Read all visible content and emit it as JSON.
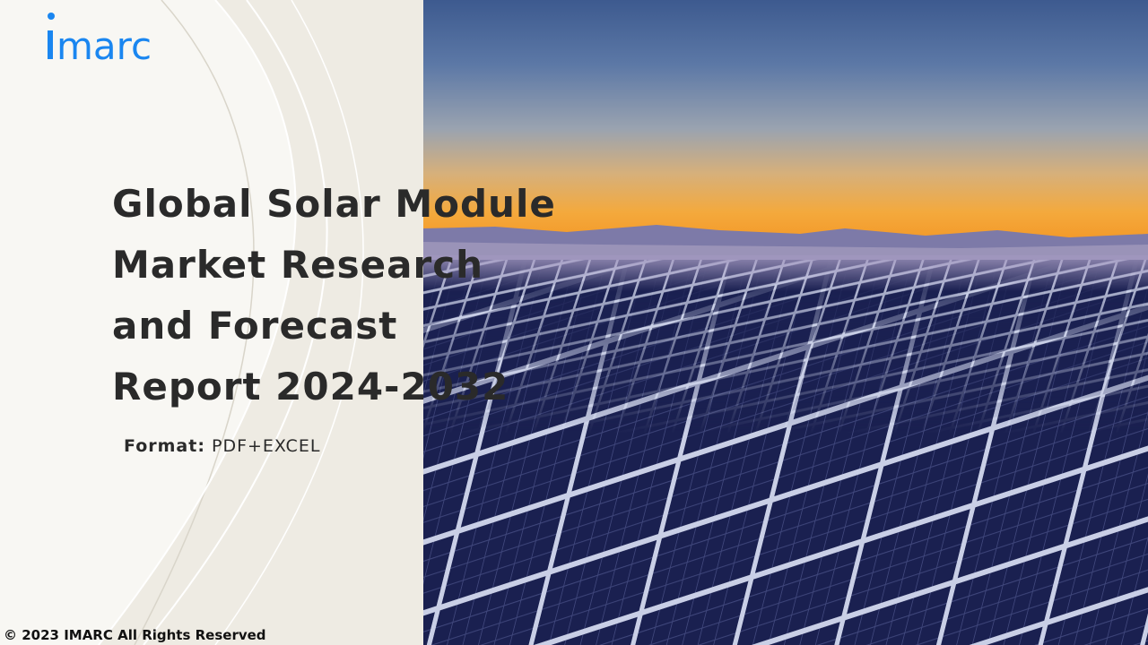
{
  "brand": {
    "logo_text": "imarc",
    "color": "#1a86f0"
  },
  "title": "Global Solar Module Market Research and Forecast Report 2024-2032",
  "format": {
    "label": "Format:",
    "value": "PDF+EXCEL"
  },
  "footer": {
    "copyright": "© 2023 IMARC All Rights Reserved"
  },
  "colors": {
    "panel_bg": "#f8f7f3",
    "text": "#2a2a2a",
    "sky_orange": "#f39a2a"
  }
}
